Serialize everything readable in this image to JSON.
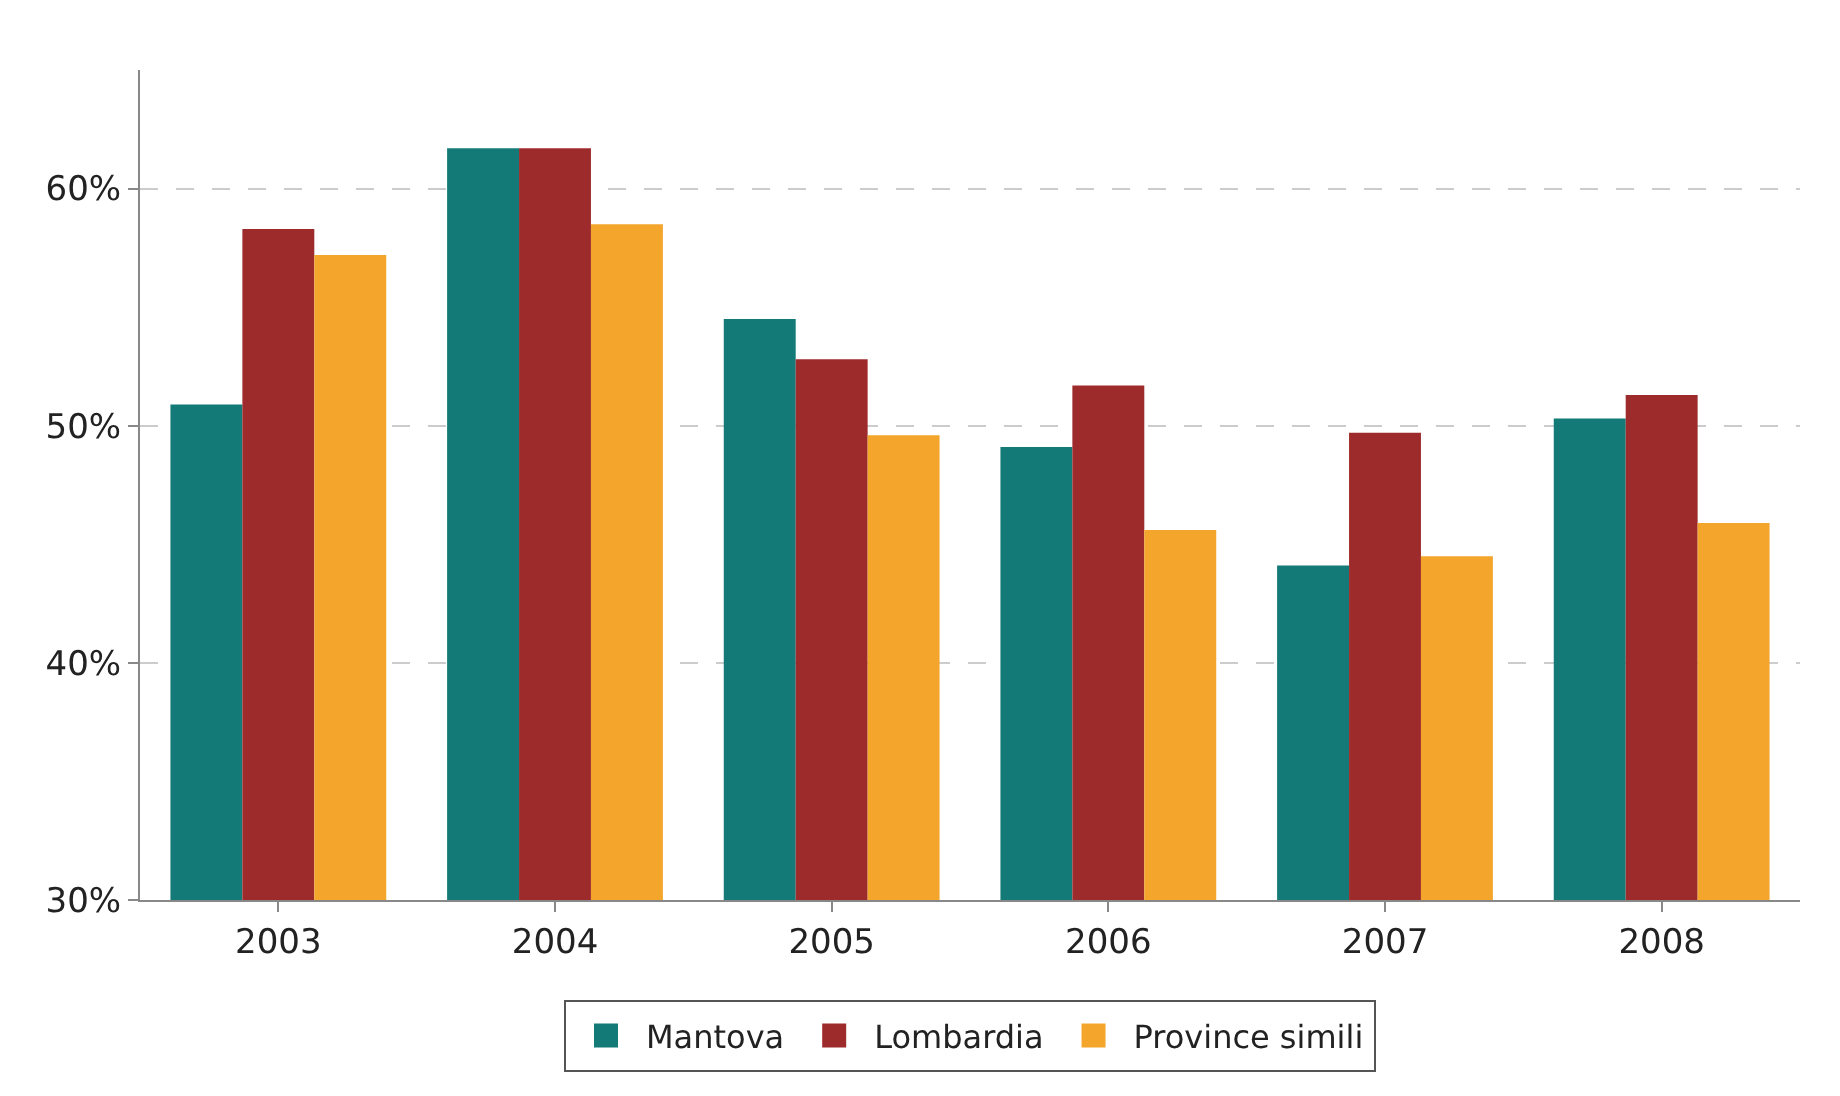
{
  "chart_data": {
    "type": "bar",
    "categories": [
      "2003",
      "2004",
      "2005",
      "2006",
      "2007",
      "2008"
    ],
    "series": [
      {
        "name": "Mantova",
        "color": "#137a78",
        "values": [
          50.9,
          61.7,
          54.5,
          49.1,
          44.1,
          50.3
        ]
      },
      {
        "name": "Lombardia",
        "color": "#9e2b2b",
        "values": [
          58.3,
          61.7,
          52.8,
          51.7,
          49.7,
          51.3
        ]
      },
      {
        "name": "Province simili",
        "color": "#f4a52c",
        "values": [
          57.2,
          58.5,
          49.6,
          45.6,
          44.5,
          45.9
        ]
      }
    ],
    "ylim": [
      30,
      65
    ],
    "yticks": [
      {
        "value": 30,
        "label": "30%"
      },
      {
        "value": 40,
        "label": "40%"
      },
      {
        "value": 50,
        "label": "50%"
      },
      {
        "value": 60,
        "label": "60%"
      }
    ],
    "grid": "y",
    "legend": "bottom"
  }
}
